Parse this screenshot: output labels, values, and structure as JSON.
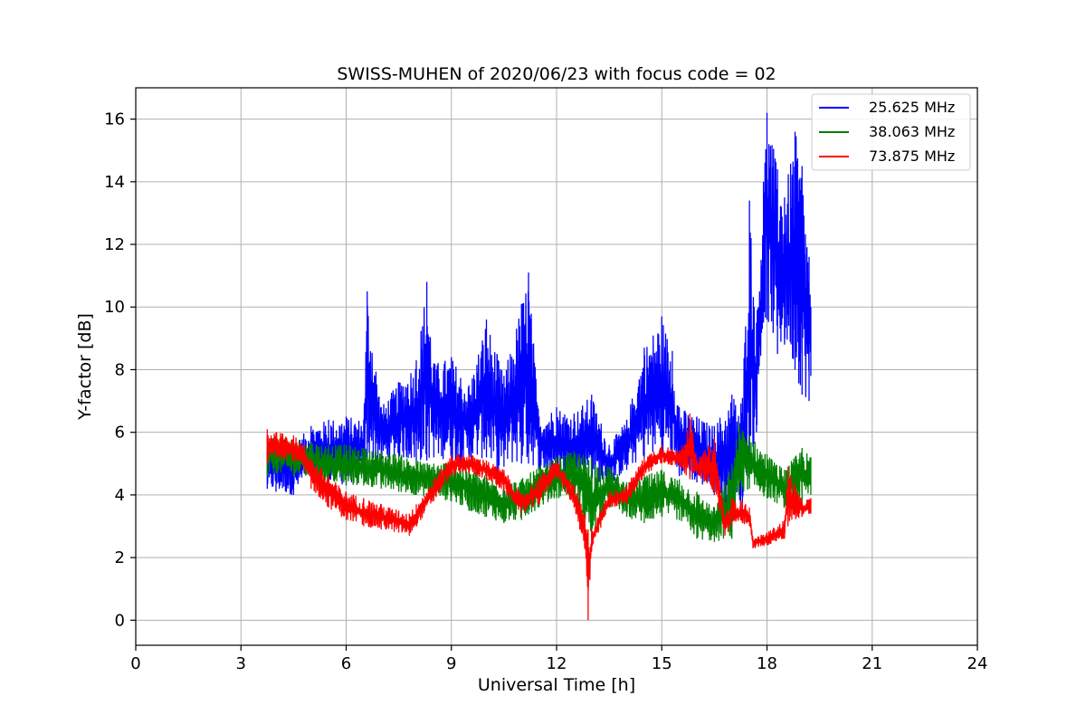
{
  "chart_data": {
    "type": "line",
    "title": "SWISS-MUHEN of 2020/06/23 with focus code = 02",
    "xlabel": "Universal Time [h]",
    "ylabel": "Y-factor [dB]",
    "xlim": [
      0,
      24
    ],
    "ylim": [
      -0.8,
      17
    ],
    "xticks": [
      0,
      3,
      6,
      9,
      12,
      15,
      18,
      21,
      24
    ],
    "yticks": [
      0,
      2,
      4,
      6,
      8,
      10,
      12,
      14,
      16
    ],
    "grid": true,
    "legend_position": "top-right",
    "series": [
      {
        "name": "25.625 MHz",
        "color": "#0000ff",
        "envelope": {
          "x": [
            3.75,
            4.0,
            4.5,
            5.0,
            5.5,
            6.0,
            6.5,
            6.6,
            7.0,
            7.5,
            8.0,
            8.3,
            8.5,
            9.0,
            9.5,
            10.0,
            10.3,
            10.5,
            11.0,
            11.2,
            11.5,
            12.0,
            12.5,
            13.0,
            13.5,
            14.0,
            14.5,
            15.0,
            15.3,
            15.5,
            16.0,
            16.5,
            17.0,
            17.3,
            17.5,
            17.7,
            17.9,
            18.0,
            18.3,
            18.5,
            18.8,
            19.0,
            19.2,
            19.25
          ],
          "high": [
            5.4,
            5.8,
            5.6,
            6.2,
            6.4,
            6.5,
            6.4,
            10.5,
            6.8,
            7.6,
            8.3,
            10.8,
            8.2,
            8.4,
            7.5,
            9.6,
            8.5,
            7.8,
            10.1,
            11.1,
            6.5,
            6.8,
            6.6,
            7.2,
            5.6,
            6.4,
            8.7,
            9.7,
            8.6,
            6.8,
            6.5,
            6.2,
            7.2,
            7.1,
            13.4,
            9.5,
            14.0,
            16.2,
            14.4,
            13.5,
            15.6,
            14.5,
            11.6,
            10.0
          ],
          "low": [
            4.2,
            4.1,
            4.0,
            4.6,
            4.4,
            4.3,
            4.6,
            5.2,
            5.0,
            5.2,
            5.0,
            5.1,
            5.2,
            5.1,
            5.0,
            5.2,
            4.7,
            4.9,
            5.0,
            5.0,
            4.8,
            4.6,
            4.6,
            4.5,
            4.3,
            4.8,
            5.2,
            5.3,
            5.0,
            4.6,
            4.4,
            4.0,
            3.2,
            3.6,
            5.0,
            6.0,
            9.5,
            9.6,
            8.5,
            8.8,
            8.0,
            7.2,
            7.0,
            7.8
          ]
        }
      },
      {
        "name": "38.063 MHz",
        "color": "#008000",
        "envelope": {
          "x": [
            3.75,
            4.0,
            4.5,
            5.0,
            5.5,
            6.0,
            6.5,
            7.0,
            7.5,
            8.0,
            8.5,
            9.0,
            9.5,
            10.0,
            10.5,
            11.0,
            11.5,
            12.0,
            12.5,
            13.0,
            13.5,
            14.0,
            14.5,
            15.0,
            15.5,
            16.0,
            16.5,
            17.0,
            17.2,
            17.5,
            18.0,
            18.5,
            19.0,
            19.25
          ],
          "high": [
            5.8,
            5.9,
            5.8,
            5.7,
            5.6,
            5.6,
            5.5,
            5.4,
            5.3,
            5.1,
            5.0,
            5.1,
            4.9,
            4.6,
            4.4,
            4.5,
            4.9,
            5.2,
            5.4,
            5.2,
            4.9,
            4.4,
            4.6,
            4.8,
            4.5,
            4.1,
            3.6,
            5.0,
            6.3,
            5.9,
            5.3,
            4.8,
            5.5,
            5.2
          ],
          "low": [
            4.6,
            4.7,
            4.6,
            4.5,
            4.4,
            4.3,
            4.3,
            4.2,
            4.1,
            4.0,
            3.9,
            3.8,
            3.5,
            3.3,
            3.1,
            3.2,
            3.6,
            3.9,
            4.0,
            2.5,
            3.6,
            3.3,
            3.1,
            3.3,
            3.2,
            2.6,
            2.5,
            2.6,
            4.0,
            4.2,
            3.9,
            3.6,
            3.8,
            4.0
          ]
        }
      },
      {
        "name": "73.875 MHz",
        "color": "#ff0000",
        "envelope": {
          "x": [
            3.75,
            4.0,
            4.5,
            4.8,
            5.0,
            5.5,
            6.0,
            6.5,
            7.0,
            7.5,
            7.8,
            8.0,
            8.5,
            9.0,
            9.5,
            10.0,
            10.5,
            11.0,
            11.5,
            12.0,
            12.5,
            12.8,
            12.9,
            13.0,
            13.5,
            14.0,
            14.5,
            15.0,
            15.5,
            15.8,
            16.0,
            16.5,
            16.8,
            17.0,
            17.3,
            17.5,
            17.6,
            18.0,
            18.5,
            18.6,
            19.0,
            19.25
          ],
          "high": [
            6.1,
            6.0,
            5.9,
            5.6,
            5.2,
            4.6,
            4.1,
            3.9,
            3.7,
            3.5,
            3.4,
            3.7,
            4.5,
            5.3,
            5.3,
            5.1,
            4.8,
            4.0,
            4.6,
            5.1,
            4.3,
            3.4,
            2.9,
            2.9,
            4.1,
            4.3,
            5.2,
            5.6,
            5.4,
            6.6,
            5.1,
            5.8,
            3.3,
            3.9,
            3.8,
            3.6,
            2.6,
            2.8,
            3.2,
            4.9,
            3.8,
            3.9
          ],
          "low": [
            5.0,
            5.2,
            5.1,
            4.8,
            4.2,
            3.6,
            3.2,
            3.0,
            2.9,
            2.8,
            2.7,
            3.0,
            3.8,
            4.6,
            4.7,
            4.5,
            4.1,
            3.4,
            3.7,
            4.6,
            3.6,
            2.3,
            0.0,
            2.2,
            3.6,
            3.7,
            4.6,
            5.0,
            4.9,
            4.5,
            4.7,
            4.0,
            2.7,
            3.0,
            3.1,
            3.0,
            2.3,
            2.4,
            2.6,
            3.0,
            3.3,
            3.4
          ]
        }
      }
    ]
  }
}
